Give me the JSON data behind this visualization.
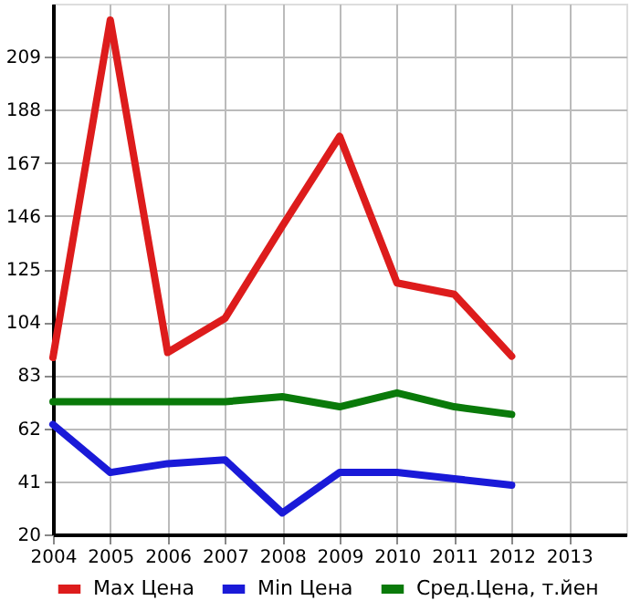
{
  "chart_data": {
    "type": "line",
    "x": [
      2004,
      2005,
      2006,
      2007,
      2008,
      2009,
      2010,
      2011,
      2012
    ],
    "series": [
      {
        "name": "Max Цена",
        "color": "#dd1c1c",
        "values": [
          90,
          223.5,
          92,
          105.5,
          142,
          177.5,
          119.5,
          115,
          90.5
        ]
      },
      {
        "name": "Min Цена",
        "color": "#1a1ad8",
        "values": [
          63.5,
          44.5,
          48,
          49.5,
          28.5,
          44.5,
          44.5,
          42,
          39.5
        ]
      },
      {
        "name": "Сред.Цена, т.йен",
        "color": "#0a7a0a",
        "values": [
          72.5,
          72.5,
          72.5,
          72.5,
          74.5,
          70.5,
          76,
          70.5,
          67.5
        ]
      }
    ],
    "xlim": [
      2004,
      2014
    ],
    "xticks": [
      2004,
      2005,
      2006,
      2007,
      2008,
      2009,
      2010,
      2011,
      2012,
      2013
    ],
    "ylim": [
      20,
      230
    ],
    "yticks": [
      20,
      41,
      62,
      83,
      104,
      125,
      146,
      167,
      188,
      209
    ],
    "grid": true,
    "legend": "bottom",
    "marker": "none",
    "line_style": "solid"
  }
}
